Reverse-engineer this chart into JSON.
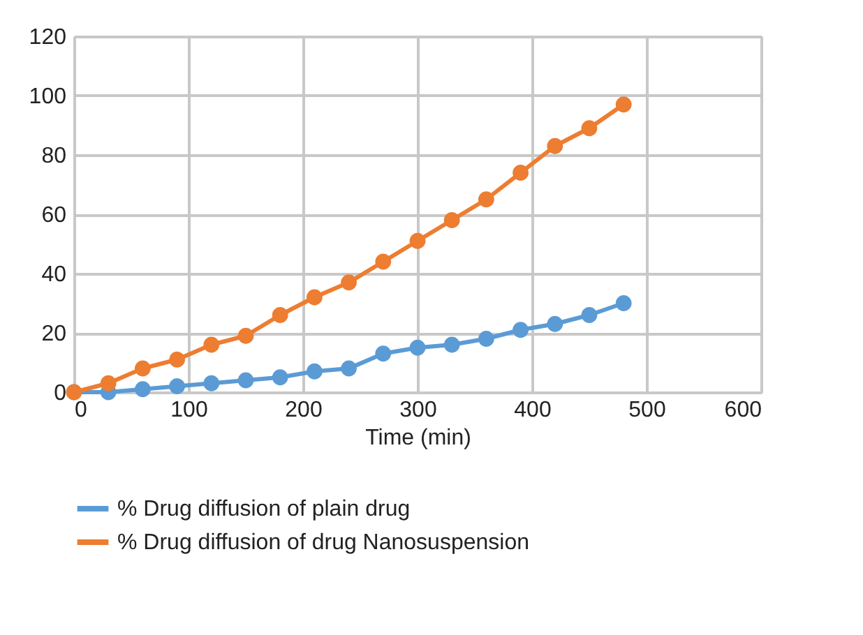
{
  "chart_data": {
    "type": "line",
    "xlabel": "Time (min)",
    "x": [
      0,
      30,
      60,
      90,
      120,
      150,
      180,
      210,
      240,
      270,
      300,
      330,
      360,
      390,
      420,
      450,
      480
    ],
    "series": [
      {
        "name": "% Drug diffusion of plain drug",
        "color": "#5b9bd5",
        "values": [
          0,
          0,
          1,
          2,
          3,
          4,
          5,
          7,
          8,
          13,
          15,
          16,
          18,
          21,
          23,
          26,
          30
        ]
      },
      {
        "name": "% Drug diffusion of drug Nanosuspension",
        "color": "#ed7d31",
        "values": [
          0,
          3,
          8,
          11,
          16,
          19,
          26,
          32,
          37,
          44,
          51,
          58,
          65,
          74,
          83,
          89,
          97
        ]
      }
    ],
    "xlim": [
      0,
      600
    ],
    "xticks": [
      0,
      100,
      200,
      300,
      400,
      500,
      600
    ],
    "ylim": [
      0,
      120
    ],
    "yticks": [
      0,
      20,
      40,
      60,
      80,
      100,
      120
    ],
    "grid": true,
    "legend": "bottom",
    "marker": "circle",
    "line_style": "solid"
  }
}
